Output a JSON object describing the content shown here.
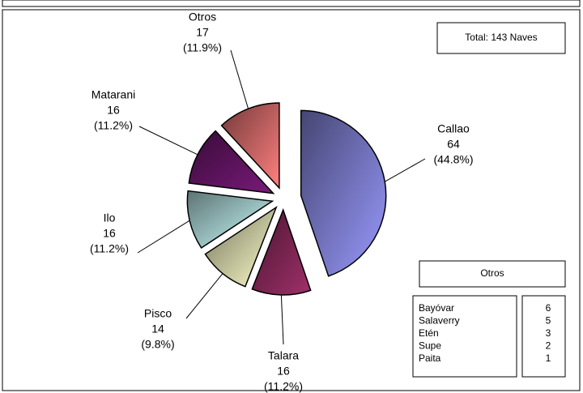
{
  "chart_data": {
    "type": "pie",
    "categories": [
      "Callao",
      "Talara",
      "Pisco",
      "Ilo",
      "Matarani",
      "Otros"
    ],
    "values": [
      64,
      16,
      14,
      16,
      16,
      17
    ],
    "percent_labels": [
      "(44.8%)",
      "(11.2%)",
      "(9.8%)",
      "(11.2%)",
      "(11.2%)",
      "(11.9%)"
    ],
    "colors": [
      "#9a9aff",
      "#a0306a",
      "#ffffcc",
      "#ccffff",
      "#7a1a7a",
      "#ff8080"
    ],
    "annotation": "Total: 143 Naves",
    "inset": {
      "title": "Otros",
      "rows": [
        [
          "Bayóvar",
          6
        ],
        [
          "Salaverry",
          5
        ],
        [
          "Etén",
          3
        ],
        [
          "Supe",
          2
        ],
        [
          "Paita",
          1
        ]
      ]
    }
  }
}
